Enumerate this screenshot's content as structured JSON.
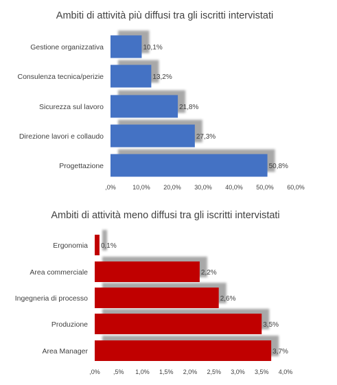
{
  "chart_data": [
    {
      "type": "bar",
      "orientation": "horizontal",
      "title": "Ambiti di attività più diffusi tra gli iscritti intervistati",
      "categories": [
        "Gestione organizzativa",
        "Consulenza tecnica/perizie",
        "Sicurezza sul lavoro",
        "Direzione lavori e collaudo",
        "Progettazione"
      ],
      "values": [
        10.1,
        13.2,
        21.8,
        27.3,
        50.8
      ],
      "data_labels": [
        "10,1%",
        "13,2%",
        "21,8%",
        "27,3%",
        "50,8%"
      ],
      "xlim": [
        0,
        60
      ],
      "ticks": [
        0,
        10,
        20,
        30,
        40,
        50,
        60
      ],
      "tick_labels": [
        ",0%",
        "10,0%",
        "20,0%",
        "30,0%",
        "40,0%",
        "50,0%",
        "60,0%"
      ],
      "color": "#4472c4",
      "shadow": true,
      "grid": false,
      "legend": "none"
    },
    {
      "type": "bar",
      "orientation": "horizontal",
      "title": "Ambiti di attività meno diffusi tra gli iscritti intervistati",
      "categories": [
        "Ergonomia",
        "Area commerciale",
        "Ingegneria di processo",
        "Produzione",
        "Area Manager"
      ],
      "values": [
        0.1,
        2.2,
        2.6,
        3.5,
        3.7
      ],
      "data_labels": [
        "0,1%",
        "2,2%",
        "2,6%",
        "3,5%",
        "3,7%"
      ],
      "xlim": [
        0,
        4
      ],
      "ticks": [
        0,
        0.5,
        1,
        1.5,
        2,
        2.5,
        3,
        3.5,
        4
      ],
      "tick_labels": [
        ",0%",
        ",5%",
        "1,0%",
        "1,5%",
        "2,0%",
        "2,5%",
        "3,0%",
        "3,5%",
        "4,0%"
      ],
      "color": "#c00000",
      "shadow": true,
      "grid": false,
      "legend": "none"
    }
  ]
}
